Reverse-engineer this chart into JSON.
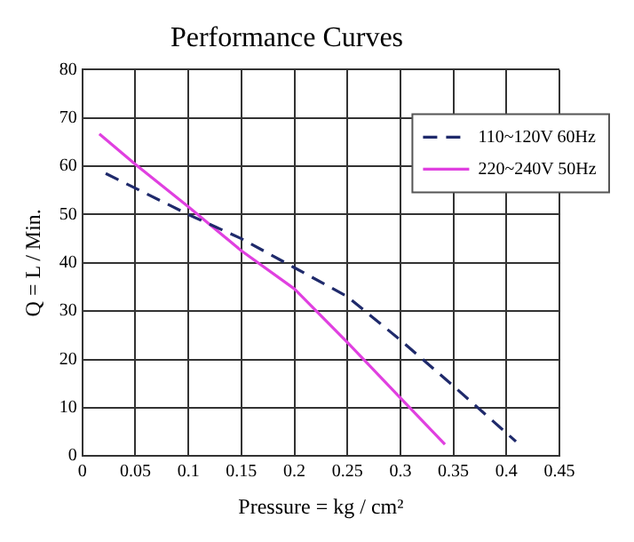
{
  "chart_data": {
    "type": "line",
    "title": "Performance Curves",
    "xlabel": "Pressure = kg / cm²",
    "ylabel": "Q = L / Min.",
    "xlim": [
      0,
      0.45
    ],
    "xticks": [
      0,
      0.05,
      0.1,
      0.15,
      0.2,
      0.25,
      0.3,
      0.35,
      0.4,
      0.45
    ],
    "ylim": [
      0,
      80
    ],
    "yticks": [
      0,
      10,
      20,
      30,
      40,
      50,
      60,
      70,
      80
    ],
    "grid": true,
    "legend": "top right",
    "marker": "none",
    "series": [
      {
        "name": "110~120V 60Hz",
        "color": "#1f2a6b",
        "line_style": "dashed",
        "x": [
          0.022,
          0.1,
          0.15,
          0.2,
          0.25,
          0.3,
          0.35,
          0.409
        ],
        "values": [
          58.5,
          50,
          45,
          39,
          33,
          24,
          14.5,
          3
        ]
      },
      {
        "name": "220~240V 50Hz",
        "color": "#e040e0",
        "line_style": "solid",
        "x": [
          0.016,
          0.05,
          0.1,
          0.15,
          0.2,
          0.25,
          0.3,
          0.342
        ],
        "values": [
          66.7,
          60.4,
          51.6,
          42.5,
          34.6,
          23.5,
          12,
          2.4
        ]
      }
    ]
  }
}
